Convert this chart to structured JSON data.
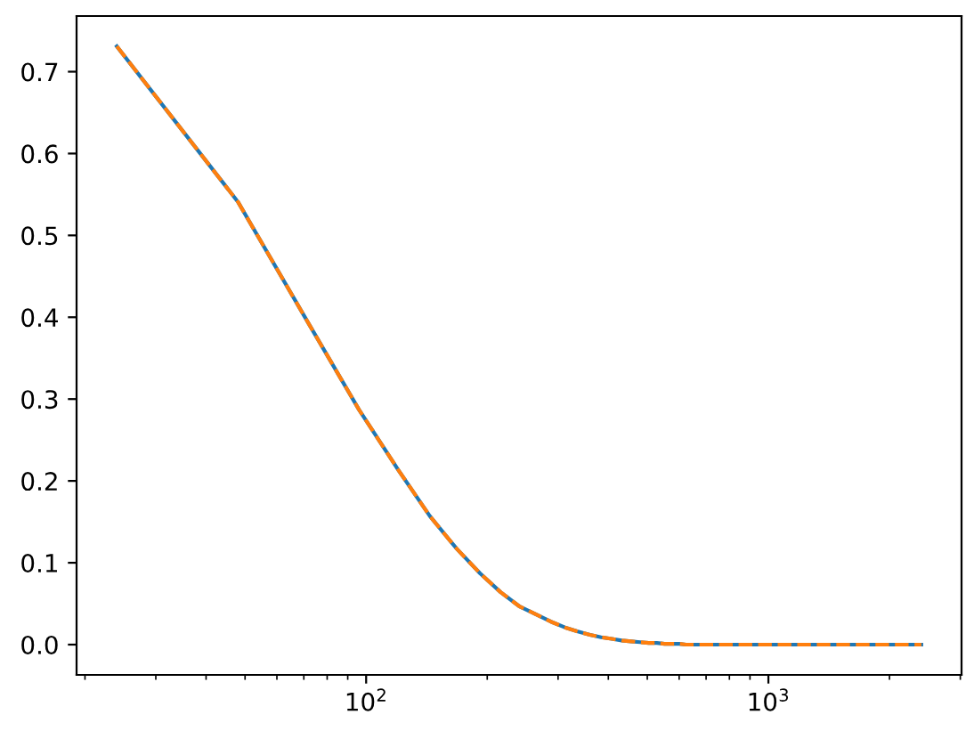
{
  "chart_data": {
    "type": "line",
    "log": "x",
    "x": [
      24,
      48,
      72,
      96,
      120,
      144,
      168,
      192,
      216,
      240,
      264,
      288,
      312,
      336,
      360,
      384,
      408,
      432,
      456,
      480,
      504,
      528,
      552,
      576,
      600,
      624,
      720,
      840,
      960,
      1200,
      1440,
      1680,
      1920,
      2160,
      2400
    ],
    "series": [
      {
        "color": "#1f77b4",
        "line_style": "solid",
        "values": [
          0.731,
          0.541,
          0.392,
          0.287,
          0.214,
          0.157,
          0.117,
          0.087,
          0.064,
          0.047,
          0.037,
          0.028,
          0.021,
          0.016,
          0.012,
          0.009,
          0.007,
          0.005,
          0.004,
          0.003,
          0.002,
          0.002,
          0.001,
          0.001,
          0.001,
          0.0,
          0.0,
          0.0,
          0.0,
          0.0,
          0.0,
          0.0,
          0.0,
          0.0,
          0.0
        ]
      },
      {
        "color": "#ff7f0e",
        "line_style": "dashed",
        "values": [
          0.731,
          0.541,
          0.392,
          0.287,
          0.214,
          0.157,
          0.117,
          0.087,
          0.064,
          0.047,
          0.037,
          0.028,
          0.021,
          0.016,
          0.012,
          0.009,
          0.007,
          0.005,
          0.004,
          0.003,
          0.002,
          0.002,
          0.001,
          0.001,
          0.001,
          0.0,
          0.0,
          0.0,
          0.0,
          0.0,
          0.0,
          0.0,
          0.0,
          0.0,
          0.0
        ]
      }
    ],
    "xlim": [
      19.06,
      3021
    ],
    "ylim": [
      -0.037,
      0.768
    ],
    "xticks": [
      {
        "value": 20,
        "label": null
      },
      {
        "value": 30,
        "label": null
      },
      {
        "value": 40,
        "label": null
      },
      {
        "value": 50,
        "label": null
      },
      {
        "value": 60,
        "label": null
      },
      {
        "value": 70,
        "label": null
      },
      {
        "value": 80,
        "label": null
      },
      {
        "value": 90,
        "label": null
      },
      {
        "value": 100,
        "label": "10$^{2}$"
      },
      {
        "value": 200,
        "label": null
      },
      {
        "value": 300,
        "label": null
      },
      {
        "value": 400,
        "label": null
      },
      {
        "value": 500,
        "label": null
      },
      {
        "value": 600,
        "label": null
      },
      {
        "value": 700,
        "label": null
      },
      {
        "value": 800,
        "label": null
      },
      {
        "value": 900,
        "label": null
      },
      {
        "value": 1000,
        "label": "10$^{3}$"
      },
      {
        "value": 2000,
        "label": null
      },
      {
        "value": 3000,
        "label": null
      }
    ],
    "yticks": [
      {
        "value": 0,
        "label": "0.0"
      },
      0.1,
      0.2,
      0.3,
      0.4,
      0.5,
      0.6,
      0.7
    ]
  }
}
